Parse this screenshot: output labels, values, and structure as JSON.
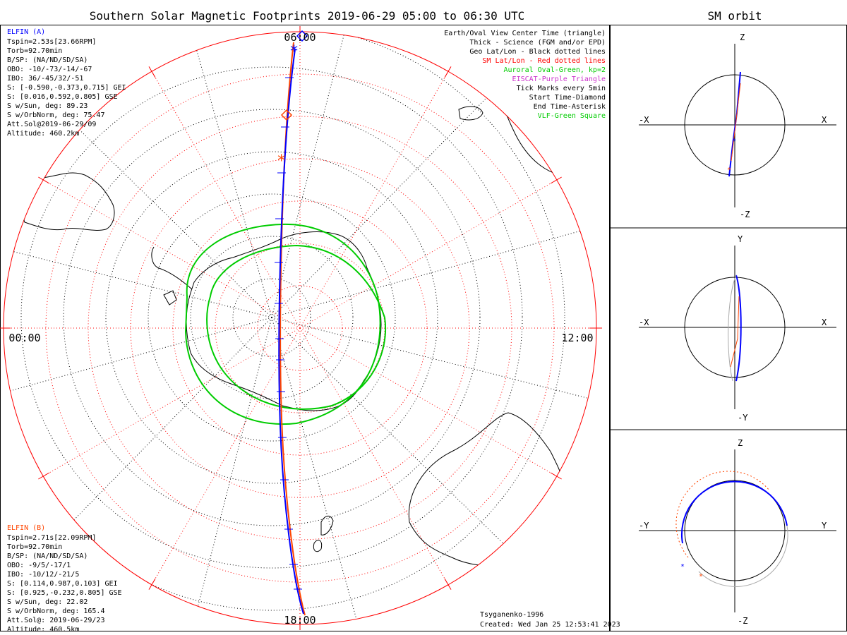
{
  "main_title": "Southern Solar Magnetic Footprints 2019-06-29 05:00 to 06:30 UTC",
  "side_title": "SM orbit",
  "clock_labels": {
    "top": "06:00",
    "left": "00:00",
    "right": "12:00",
    "bottom": "18:00"
  },
  "elfin_a": {
    "name": "ELFIN (A)",
    "color": "#0000ff",
    "lines": [
      "Tspin=2.53s[23.66RPM]",
      "Torb=92.70min",
      "B/SP: (NA/ND/SD/SA)",
      "OBO: -10/-73/-14/-67",
      "IBO: 36/-45/32/-51",
      "S: [-0.590,-0.373,0.715] GEI",
      "S: [0.016,0.592,0.805] GSE",
      "S w/Sun, deg: 89.23",
      "S w/OrbNorm, deg: 75.47",
      "Att.Sol@2019-06-29/09",
      "Altitude: 460.2km"
    ]
  },
  "elfin_b": {
    "name": "ELFIN (B)",
    "color": "#ff4500",
    "lines": [
      "Tspin=2.71s[22.09RPM]",
      "Torb=92.70min",
      "B/SP: (NA/ND/SD/SA)",
      "OBO: -9/5/-17/1",
      "IBO: -10/12/-21/5",
      "S: [0.114,0.987,0.103] GEI",
      "S: [0.925,-0.232,0.805] GSE",
      "S w/Sun, deg: 22.02",
      "S w/OrbNorm, deg: 165.4",
      "Att.Sol@: 2019-06-29/23",
      "Altitude: 460.5km"
    ]
  },
  "legend": [
    {
      "text": "Earth/Oval View Center Time (triangle)",
      "color": "#000000"
    },
    {
      "text": "Thick - Science (FGM and/or EPD)",
      "color": "#000000"
    },
    {
      "text": "Geo Lat/Lon - Black dotted lines",
      "color": "#000000"
    },
    {
      "text": "SM Lat/Lon - Red dotted lines",
      "color": "#ff0000"
    },
    {
      "text": "Auroral Oval-Green, kp=2",
      "color": "#00cc00"
    },
    {
      "text": "EISCAT-Purple Triangle",
      "color": "#cc33cc"
    },
    {
      "text": "Tick Marks every 5min",
      "color": "#000000"
    },
    {
      "text": "Start Time-Diamond",
      "color": "#000000"
    },
    {
      "text": "End Time-Asterisk",
      "color": "#000000"
    },
    {
      "text": "VLF-Green Square",
      "color": "#00cc00"
    }
  ],
  "footer": {
    "model": "Tsyganenko-1996",
    "created": "Created: Wed Jan 25 12:53:41 2023"
  },
  "panels": [
    {
      "top": "Z",
      "bottom": "-Z",
      "left": "-X",
      "right": "X"
    },
    {
      "top": "Y",
      "bottom": "-Y",
      "left": "-X",
      "right": "X"
    },
    {
      "top": "Z",
      "bottom": "-Z",
      "left": "-Y",
      "right": "Y"
    }
  ],
  "colors": {
    "geo_grid": "#000000",
    "sm_grid": "#ff0000",
    "oval": "#00cc00",
    "track_a": "#0000ff",
    "track_b": "#ff4500"
  }
}
